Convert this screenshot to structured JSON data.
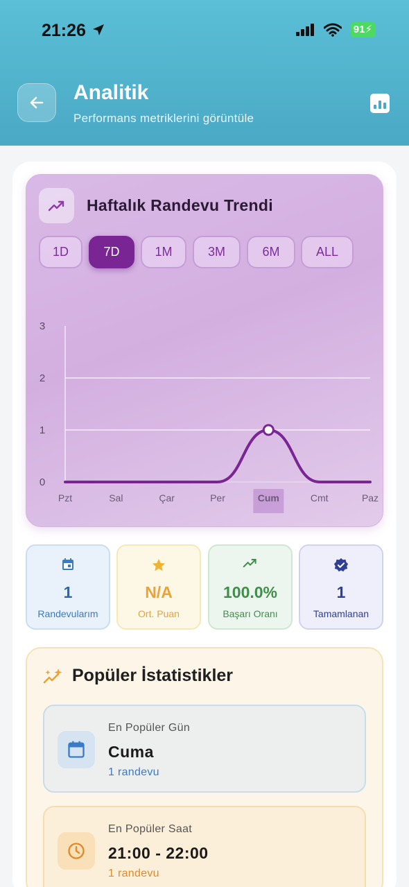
{
  "status_bar": {
    "time": "21:26",
    "battery": "91"
  },
  "header": {
    "title": "Analitik",
    "subtitle": "Performans metriklerini görüntüle"
  },
  "trend": {
    "title": "Haftalık Randevu Trendi",
    "ranges": [
      "1D",
      "7D",
      "1M",
      "3M",
      "6M",
      "ALL"
    ],
    "active_range": "7D"
  },
  "chart_data": {
    "type": "line",
    "categories": [
      "Pzt",
      "Sal",
      "Çar",
      "Per",
      "Cum",
      "Cmt",
      "Paz"
    ],
    "values": [
      0,
      0,
      0,
      0,
      1,
      0,
      0
    ],
    "ylim": [
      0,
      3
    ],
    "yticks": [
      "0",
      "1",
      "2",
      "3"
    ],
    "highlighted_category": "Cum",
    "grid": true
  },
  "stats": [
    {
      "value": "1",
      "label": "Randevularım",
      "icon": "calendar-icon",
      "color": "#3a7bc8"
    },
    {
      "value": "N/A",
      "label": "Ort. Puan",
      "icon": "star-icon",
      "color": "#e8a33a"
    },
    {
      "value": "100.0%",
      "label": "Başarı Oranı",
      "icon": "trending-up-icon",
      "color": "#3f8f4a"
    },
    {
      "value": "1",
      "label": "Tamamlanan",
      "icon": "verified-icon",
      "color": "#2f3f99"
    }
  ],
  "popular": {
    "title": "Popüler İstatistikler",
    "items": [
      {
        "label": "En Popüler Gün",
        "value": "Cuma",
        "sub": "1 randevu",
        "icon": "calendar-icon"
      },
      {
        "label": "En Popüler Saat",
        "value": "21:00 - 22:00",
        "sub": "1 randevu",
        "icon": "clock-icon"
      }
    ]
  }
}
